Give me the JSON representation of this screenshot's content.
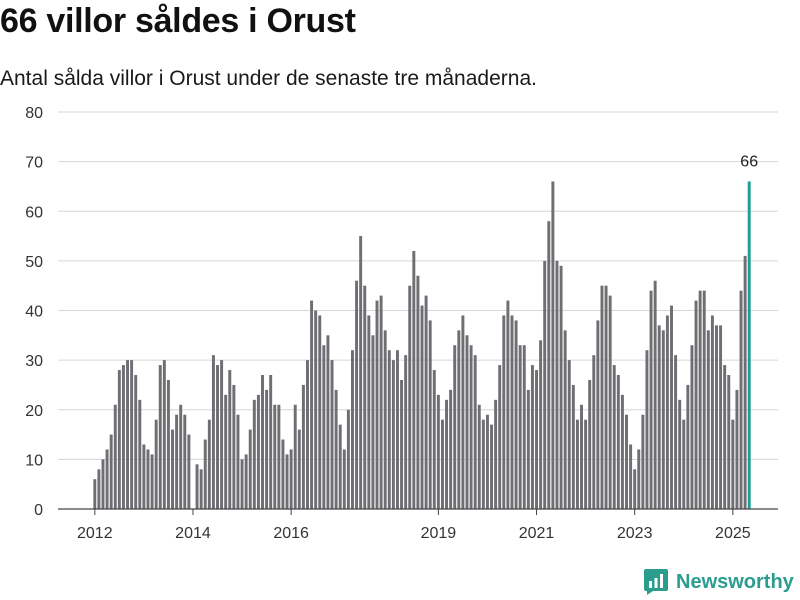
{
  "header": {
    "title": "66 villor såldes i Orust",
    "subtitle": "Antal sålda villor i Orust under de senaste tre månaderna."
  },
  "brand": {
    "name": "Newsworthy"
  },
  "colors": {
    "bar": "#6e6e73",
    "highlight": "#1f9e95",
    "grid": "#d6d6d6",
    "axis": "#444444",
    "brand": "#2a9d8f"
  },
  "chart_data": {
    "type": "bar",
    "ylim": [
      0,
      80
    ],
    "yticks": [
      0,
      10,
      20,
      30,
      40,
      50,
      60,
      70,
      80
    ],
    "x_range": [
      2011.25,
      2025.92
    ],
    "xticks": [
      {
        "label": "2012",
        "x": 2012.0
      },
      {
        "label": "2014",
        "x": 2014.0
      },
      {
        "label": "2016",
        "x": 2016.0
      },
      {
        "label": "2019",
        "x": 2019.0
      },
      {
        "label": "2021",
        "x": 2021.0
      },
      {
        "label": "2023",
        "x": 2023.0
      },
      {
        "label": "2025",
        "x": 2025.0
      }
    ],
    "start": "2012-01",
    "end": "2025-06",
    "values": [
      6,
      8,
      10,
      12,
      15,
      21,
      28,
      29,
      30,
      30,
      27,
      22,
      13,
      12,
      11,
      18,
      29,
      30,
      26,
      16,
      19,
      21,
      19,
      15,
      0,
      9,
      8,
      14,
      18,
      31,
      29,
      30,
      23,
      28,
      25,
      19,
      10,
      11,
      16,
      22,
      23,
      27,
      24,
      27,
      21,
      21,
      14,
      11,
      12,
      21,
      16,
      25,
      30,
      42,
      40,
      39,
      33,
      35,
      30,
      24,
      17,
      12,
      20,
      32,
      46,
      55,
      45,
      39,
      35,
      42,
      43,
      36,
      32,
      30,
      32,
      26,
      31,
      45,
      52,
      47,
      41,
      43,
      38,
      28,
      23,
      18,
      22,
      24,
      33,
      36,
      39,
      35,
      33,
      31,
      21,
      18,
      19,
      17,
      22,
      29,
      39,
      42,
      39,
      38,
      33,
      33,
      24,
      29,
      28,
      34,
      50,
      58,
      66,
      50,
      49,
      36,
      30,
      25,
      18,
      21,
      18,
      26,
      31,
      38,
      45,
      45,
      43,
      29,
      27,
      23,
      19,
      13,
      8,
      12,
      19,
      32,
      44,
      46,
      37,
      36,
      39,
      41,
      31,
      22,
      18,
      25,
      33,
      42,
      44,
      44,
      36,
      39,
      37,
      37,
      29,
      27,
      18,
      24,
      44,
      51,
      66
    ],
    "highlight": {
      "value": 66,
      "label": "66"
    }
  }
}
